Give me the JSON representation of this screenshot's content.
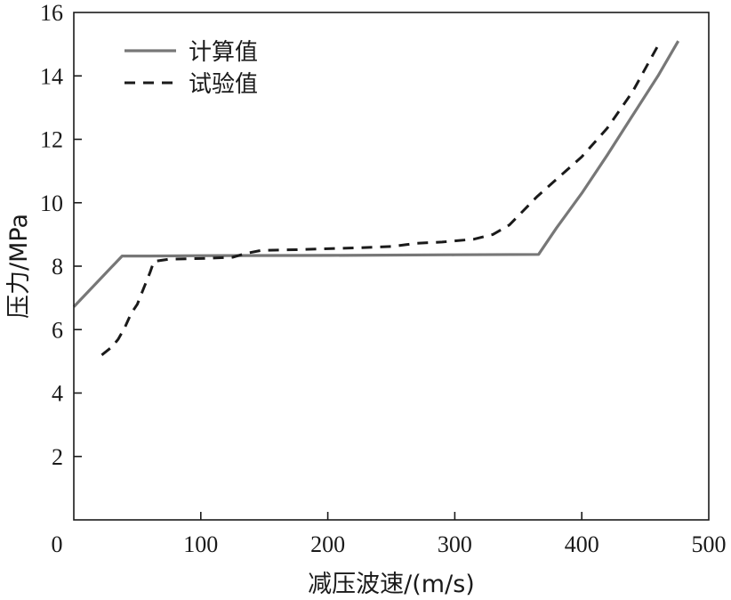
{
  "chart_data": {
    "type": "line",
    "xlabel": "减压波速/(m/s)",
    "ylabel": "压力/MPa",
    "xlim": [
      0,
      500
    ],
    "ylim": [
      0,
      16
    ],
    "xticks": [
      0,
      100,
      200,
      300,
      400,
      500
    ],
    "yticks": [
      2,
      4,
      6,
      8,
      10,
      12,
      14,
      16
    ],
    "grid": false,
    "legend_position": "top-left",
    "series": [
      {
        "name": "计算值",
        "style": "solid",
        "color": "#777777",
        "x": [
          0,
          38,
          60,
          100,
          200,
          300,
          366,
          380,
          400,
          420,
          440,
          460,
          476
        ],
        "y": [
          6.72,
          8.32,
          8.32,
          8.33,
          8.34,
          8.36,
          8.37,
          9.2,
          10.3,
          11.5,
          12.75,
          14.0,
          15.1
        ]
      },
      {
        "name": "试验值",
        "style": "dashed",
        "color": "#1a1a1a",
        "x": [
          22,
          30,
          35,
          40,
          45,
          50,
          55,
          60,
          63,
          75,
          100,
          125,
          135,
          148,
          175,
          200,
          225,
          250,
          262,
          270,
          290,
          315,
          330,
          343,
          365,
          400,
          420,
          440,
          462
        ],
        "y": [
          5.2,
          5.45,
          5.7,
          6.05,
          6.5,
          6.8,
          7.3,
          7.8,
          8.15,
          8.22,
          8.24,
          8.28,
          8.4,
          8.5,
          8.52,
          8.55,
          8.58,
          8.62,
          8.68,
          8.72,
          8.76,
          8.85,
          9.0,
          9.3,
          10.2,
          11.45,
          12.35,
          13.5,
          15.1
        ]
      }
    ]
  }
}
